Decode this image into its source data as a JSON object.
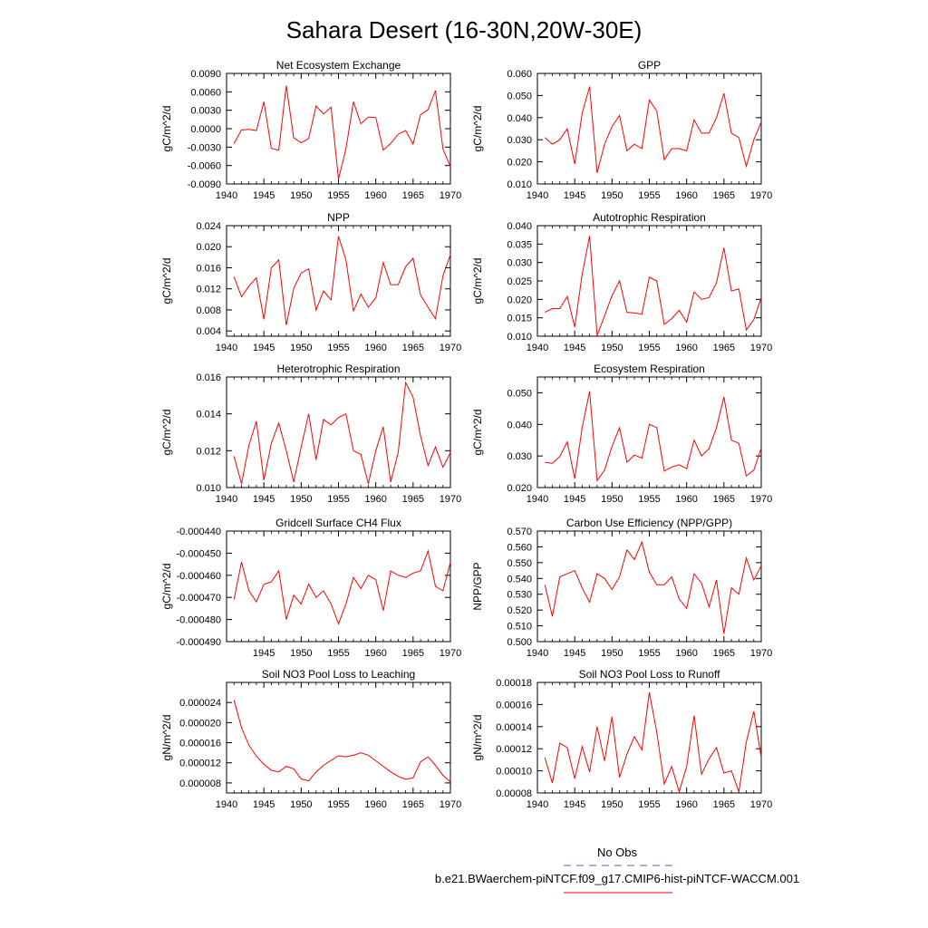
{
  "figure": {
    "title": "Sahara Desert (16-30N,20W-30E)",
    "legend": [
      {
        "label": "No Obs",
        "color": "#5a5acc",
        "dash": true
      },
      {
        "label": "b.e21.BWaerchem-piNTCF.f09_g17.CMIP6-hist-piNTCF-WACCM.001",
        "color": "#ff0000",
        "dash": false
      }
    ]
  },
  "chart_data": [
    {
      "type": "line",
      "title": "Net Ecosystem Exchange",
      "ylabel": "gC/m^2/d",
      "xlabel": "",
      "xlim": [
        1940,
        1970
      ],
      "ylim": [
        -0.009,
        0.009
      ],
      "xticks": [
        1940,
        1945,
        1950,
        1955,
        1960,
        1965,
        1970
      ],
      "yticks": [
        "-0.0090",
        "-0.0060",
        "-0.0030",
        "0.0000",
        "0.0030",
        "0.0060",
        "0.0090"
      ],
      "series": [
        {
          "color": "#ff0000",
          "x": [
            1941,
            1942,
            1943,
            1944,
            1945,
            1946,
            1947,
            1948,
            1949,
            1950,
            1951,
            1952,
            1953,
            1954,
            1955,
            1956,
            1957,
            1958,
            1959,
            1960,
            1961,
            1962,
            1963,
            1964,
            1965,
            1966,
            1967,
            1968,
            1969,
            1970
          ],
          "values": [
            -0.0024,
            -0.0002,
            -0.0001,
            -0.0003,
            0.0044,
            -0.0032,
            -0.0035,
            0.007,
            -0.0015,
            -0.0023,
            -0.0016,
            0.0037,
            0.0024,
            0.0035,
            -0.0082,
            -0.0033,
            0.0044,
            0.0008,
            0.0019,
            0.0018,
            -0.0035,
            -0.0024,
            -0.0009,
            -0.0003,
            -0.0025,
            0.0023,
            0.0031,
            0.0062,
            -0.0033,
            -0.0062
          ]
        }
      ]
    },
    {
      "type": "line",
      "title": "GPP",
      "ylabel": "gC/m^2/d",
      "xlabel": "",
      "xlim": [
        1940,
        1970
      ],
      "ylim": [
        0.01,
        0.06
      ],
      "xticks": [
        1940,
        1945,
        1950,
        1955,
        1960,
        1965,
        1970
      ],
      "yticks": [
        "0.010",
        "0.020",
        "0.030",
        "0.040",
        "0.050",
        "0.060"
      ],
      "series": [
        {
          "color": "#ff0000",
          "x": [
            1941,
            1942,
            1943,
            1944,
            1945,
            1946,
            1947,
            1948,
            1949,
            1950,
            1951,
            1952,
            1953,
            1954,
            1955,
            1956,
            1957,
            1958,
            1959,
            1960,
            1961,
            1962,
            1963,
            1964,
            1965,
            1966,
            1967,
            1968,
            1969,
            1970
          ],
          "values": [
            0.031,
            0.028,
            0.03,
            0.035,
            0.019,
            0.042,
            0.054,
            0.015,
            0.028,
            0.036,
            0.041,
            0.025,
            0.028,
            0.026,
            0.048,
            0.043,
            0.021,
            0.026,
            0.026,
            0.025,
            0.039,
            0.033,
            0.033,
            0.04,
            0.051,
            0.033,
            0.031,
            0.018,
            0.03,
            0.038
          ]
        }
      ]
    },
    {
      "type": "line",
      "title": "NPP",
      "ylabel": "gC/m^2/d",
      "xlabel": "",
      "xlim": [
        1940,
        1970
      ],
      "ylim": [
        0.003,
        0.024
      ],
      "xticks": [
        1940,
        1945,
        1950,
        1955,
        1960,
        1965,
        1970
      ],
      "yticks": [
        "0.004",
        "0.008",
        "0.012",
        "0.016",
        "0.020",
        "0.024"
      ],
      "series": [
        {
          "color": "#ff0000",
          "x": [
            1941,
            1942,
            1943,
            1944,
            1945,
            1946,
            1947,
            1948,
            1949,
            1950,
            1951,
            1952,
            1953,
            1954,
            1955,
            1956,
            1957,
            1958,
            1959,
            1960,
            1961,
            1962,
            1963,
            1964,
            1965,
            1966,
            1967,
            1968,
            1969,
            1970
          ],
          "values": [
            0.0143,
            0.0105,
            0.0125,
            0.0141,
            0.0062,
            0.016,
            0.0175,
            0.0051,
            0.0121,
            0.015,
            0.0158,
            0.008,
            0.0116,
            0.0099,
            0.022,
            0.0175,
            0.0078,
            0.011,
            0.0085,
            0.0103,
            0.017,
            0.0128,
            0.0128,
            0.0162,
            0.0178,
            0.0108,
            0.0085,
            0.0063,
            0.0145,
            0.0185
          ]
        }
      ]
    },
    {
      "type": "line",
      "title": "Autotrophic Respiration",
      "ylabel": "gC/m^2/d",
      "xlabel": "",
      "xlim": [
        1940,
        1970
      ],
      "ylim": [
        0.01,
        0.04
      ],
      "xticks": [
        1940,
        1945,
        1950,
        1955,
        1960,
        1965,
        1970
      ],
      "yticks": [
        "0.010",
        "0.015",
        "0.020",
        "0.025",
        "0.030",
        "0.035",
        "0.040"
      ],
      "series": [
        {
          "color": "#ff0000",
          "x": [
            1941,
            1942,
            1943,
            1944,
            1945,
            1946,
            1947,
            1948,
            1949,
            1950,
            1951,
            1952,
            1953,
            1954,
            1955,
            1956,
            1957,
            1958,
            1959,
            1960,
            1961,
            1962,
            1963,
            1964,
            1965,
            1966,
            1967,
            1968,
            1969,
            1970
          ],
          "values": [
            0.0165,
            0.0175,
            0.0175,
            0.0208,
            0.0125,
            0.0268,
            0.0372,
            0.0102,
            0.0155,
            0.021,
            0.025,
            0.0165,
            0.0163,
            0.016,
            0.026,
            0.025,
            0.0132,
            0.0148,
            0.017,
            0.0138,
            0.022,
            0.02,
            0.0205,
            0.0245,
            0.034,
            0.0223,
            0.0228,
            0.0117,
            0.0145,
            0.0205
          ]
        }
      ]
    },
    {
      "type": "line",
      "title": "Heterotrophic Respiration",
      "ylabel": "gC/m^2/d",
      "xlabel": "",
      "xlim": [
        1940,
        1970
      ],
      "ylim": [
        0.01,
        0.016
      ],
      "xticks": [
        1940,
        1945,
        1950,
        1955,
        1960,
        1965,
        1970
      ],
      "yticks": [
        "0.010",
        "0.012",
        "0.014",
        "0.016"
      ],
      "series": [
        {
          "color": "#ff0000",
          "x": [
            1941,
            1942,
            1943,
            1944,
            1945,
            1946,
            1947,
            1948,
            1949,
            1950,
            1951,
            1952,
            1953,
            1954,
            1955,
            1956,
            1957,
            1958,
            1959,
            1960,
            1961,
            1962,
            1963,
            1964,
            1965,
            1966,
            1967,
            1968,
            1969,
            1970
          ],
          "values": [
            0.0117,
            0.0102,
            0.0123,
            0.0136,
            0.0104,
            0.0124,
            0.0135,
            0.012,
            0.0103,
            0.0122,
            0.014,
            0.0115,
            0.0137,
            0.0134,
            0.0138,
            0.014,
            0.012,
            0.0118,
            0.0102,
            0.012,
            0.0133,
            0.0103,
            0.0119,
            0.0157,
            0.0149,
            0.0128,
            0.0112,
            0.0122,
            0.0111,
            0.0119
          ]
        }
      ]
    },
    {
      "type": "line",
      "title": "Ecosystem Respiration",
      "ylabel": "gC/m^2/d",
      "xlabel": "",
      "xlim": [
        1940,
        1970
      ],
      "ylim": [
        0.02,
        0.055
      ],
      "xticks": [
        1940,
        1945,
        1950,
        1955,
        1960,
        1965,
        1970
      ],
      "yticks": [
        "0.020",
        "0.030",
        "0.040",
        "0.050"
      ],
      "series": [
        {
          "color": "#ff0000",
          "x": [
            1941,
            1942,
            1943,
            1944,
            1945,
            1946,
            1947,
            1948,
            1949,
            1950,
            1951,
            1952,
            1953,
            1954,
            1955,
            1956,
            1957,
            1958,
            1959,
            1960,
            1961,
            1962,
            1963,
            1964,
            1965,
            1966,
            1967,
            1968,
            1969,
            1970
          ],
          "values": [
            0.028,
            0.0277,
            0.0298,
            0.0345,
            0.0228,
            0.039,
            0.0505,
            0.0222,
            0.0255,
            0.033,
            0.039,
            0.028,
            0.0303,
            0.0293,
            0.04,
            0.039,
            0.0252,
            0.0265,
            0.0272,
            0.026,
            0.035,
            0.03,
            0.0323,
            0.039,
            0.0487,
            0.035,
            0.034,
            0.0237,
            0.0255,
            0.0325
          ]
        }
      ]
    },
    {
      "type": "line",
      "title": "Gridcell Surface CH4 Flux",
      "ylabel": "gC/m^2/d",
      "xlabel": "",
      "xlim": [
        1940,
        1970
      ],
      "ylim": [
        -0.00049,
        -0.00044
      ],
      "xticks": [
        1945,
        1950,
        1955,
        1960,
        1965,
        1970
      ],
      "yticks": [
        "-0.000490",
        "-0.000480",
        "-0.000470",
        "-0.000460",
        "-0.000450",
        "-0.000440"
      ],
      "series": [
        {
          "color": "#ff0000",
          "x": [
            1941,
            1942,
            1943,
            1944,
            1945,
            1946,
            1947,
            1948,
            1949,
            1950,
            1951,
            1952,
            1953,
            1954,
            1955,
            1956,
            1957,
            1958,
            1959,
            1960,
            1961,
            1962,
            1963,
            1964,
            1965,
            1966,
            1967,
            1968,
            1969,
            1970
          ],
          "values": [
            -0.000471,
            -0.000454,
            -0.000467,
            -0.000472,
            -0.000464,
            -0.000463,
            -0.000458,
            -0.00048,
            -0.000469,
            -0.000473,
            -0.000464,
            -0.00047,
            -0.000467,
            -0.000473,
            -0.000482,
            -0.000473,
            -0.000461,
            -0.000466,
            -0.00046,
            -0.000462,
            -0.000476,
            -0.000458,
            -0.00046,
            -0.000461,
            -0.000459,
            -0.000458,
            -0.000449,
            -0.000465,
            -0.000467,
            -0.000454
          ]
        }
      ]
    },
    {
      "type": "line",
      "title": "Carbon Use Efficiency (NPP/GPP)",
      "ylabel": "NPP/GPP",
      "xlabel": "",
      "xlim": [
        1940,
        1970
      ],
      "ylim": [
        0.5,
        0.57
      ],
      "xticks": [
        1940,
        1945,
        1950,
        1955,
        1960,
        1965,
        1970
      ],
      "yticks": [
        "0.500",
        "0.510",
        "0.520",
        "0.530",
        "0.540",
        "0.550",
        "0.560",
        "0.570"
      ],
      "series": [
        {
          "color": "#ff0000",
          "x": [
            1941,
            1942,
            1943,
            1944,
            1945,
            1946,
            1947,
            1948,
            1949,
            1950,
            1951,
            1952,
            1953,
            1954,
            1955,
            1956,
            1957,
            1958,
            1959,
            1960,
            1961,
            1962,
            1963,
            1964,
            1965,
            1966,
            1967,
            1968,
            1969,
            1970
          ],
          "values": [
            0.536,
            0.516,
            0.541,
            0.543,
            0.545,
            0.534,
            0.525,
            0.543,
            0.54,
            0.533,
            0.541,
            0.558,
            0.552,
            0.563,
            0.544,
            0.536,
            0.536,
            0.541,
            0.527,
            0.521,
            0.543,
            0.537,
            0.522,
            0.539,
            0.505,
            0.534,
            0.53,
            0.553,
            0.539,
            0.548
          ]
        }
      ]
    },
    {
      "type": "line",
      "title": "Soil NO3 Pool Loss to Leaching",
      "ylabel": "gN/m^2/d",
      "xlabel": "",
      "xlim": [
        1940,
        1970
      ],
      "ylim": [
        6e-06,
        2.8e-05
      ],
      "xticks": [
        1940,
        1945,
        1950,
        1955,
        1960,
        1965,
        1970
      ],
      "yticks": [
        "0.000008",
        "0.000012",
        "0.000016",
        "0.000020",
        "0.000024"
      ],
      "series": [
        {
          "color": "#ff0000",
          "x": [
            1941,
            1942,
            1943,
            1944,
            1945,
            1946,
            1947,
            1948,
            1949,
            1950,
            1951,
            1952,
            1953,
            1954,
            1955,
            1956,
            1957,
            1958,
            1959,
            1960,
            1961,
            1962,
            1963,
            1964,
            1965,
            1966,
            1967,
            1968,
            1969,
            1970
          ],
          "values": [
            2.45e-05,
            1.9e-05,
            1.55e-05,
            1.33e-05,
            1.17e-05,
            1.05e-05,
            1.02e-05,
            1.13e-05,
            1.08e-05,
            8.8e-06,
            8.4e-06,
            1.02e-05,
            1.15e-05,
            1.25e-05,
            1.34e-05,
            1.32e-05,
            1.35e-05,
            1.4e-05,
            1.35e-05,
            1.24e-05,
            1.13e-05,
            1.02e-05,
            9.3e-06,
            8.7e-06,
            9e-06,
            1.22e-05,
            1.32e-05,
            1.15e-05,
            9.5e-06,
            8.2e-06
          ]
        }
      ]
    },
    {
      "type": "line",
      "title": "Soil NO3 Pool Loss to Runoff",
      "ylabel": "gN/m^2/d",
      "xlabel": "",
      "xlim": [
        1940,
        1970
      ],
      "ylim": [
        8e-05,
        0.00018
      ],
      "xticks": [
        1940,
        1945,
        1950,
        1955,
        1960,
        1965,
        1970
      ],
      "yticks": [
        "0.00008",
        "0.00010",
        "0.00012",
        "0.00014",
        "0.00016",
        "0.00018"
      ],
      "series": [
        {
          "color": "#ff0000",
          "x": [
            1941,
            1942,
            1943,
            1944,
            1945,
            1946,
            1947,
            1948,
            1949,
            1950,
            1951,
            1952,
            1953,
            1954,
            1955,
            1956,
            1957,
            1958,
            1959,
            1960,
            1961,
            1962,
            1963,
            1964,
            1965,
            1966,
            1967,
            1968,
            1969,
            1970
          ],
          "values": [
            0.000112,
            8.9e-05,
            0.000125,
            0.000121,
            9.3e-05,
            0.000122,
            9.9e-05,
            0.00014,
            0.000109,
            0.000149,
            9.4e-05,
            0.000115,
            0.000131,
            0.000119,
            0.000171,
            0.000135,
            8.8e-05,
            0.000104,
            8.1e-05,
            0.000104,
            0.00015,
            9.7e-05,
            0.000111,
            0.000121,
            9.8e-05,
            0.0001,
            8.1e-05,
            0.000126,
            0.000154,
            0.000112
          ]
        }
      ]
    }
  ]
}
